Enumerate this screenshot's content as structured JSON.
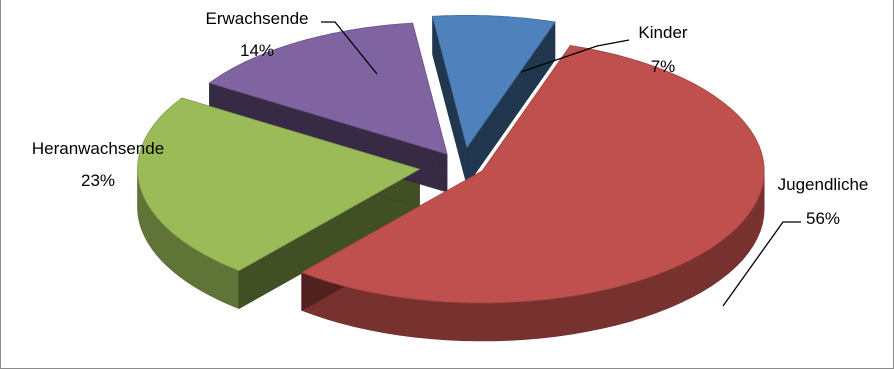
{
  "chart_data": {
    "type": "pie",
    "title": "",
    "style": "3d-exploded",
    "colors": {
      "kinder": "#4F81BD",
      "jugendliche": "#C0504D",
      "heranwachsende": "#9BBB59",
      "erwachsende": "#8064A2"
    },
    "slices": [
      {
        "label": "Kinder",
        "value": 7,
        "value_text": "7%"
      },
      {
        "label": "Jugendliche",
        "value": 56,
        "value_text": "56%"
      },
      {
        "label": "Heranwachsende",
        "value": 23,
        "value_text": "23%"
      },
      {
        "label": "Erwachsende",
        "value": 14,
        "value_text": "14%"
      }
    ]
  }
}
